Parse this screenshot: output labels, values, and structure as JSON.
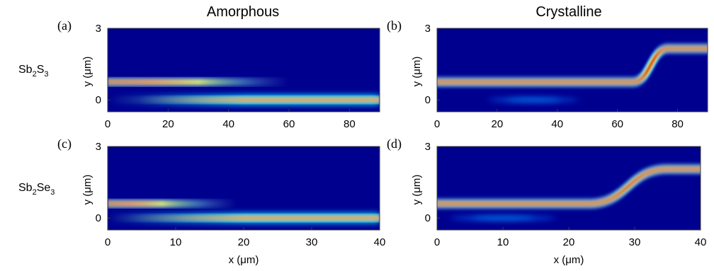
{
  "column_titles": [
    "Amorphous",
    "Crystalline"
  ],
  "row_labels": [
    {
      "base": "Sb",
      "sub1": "2",
      "mid": "S",
      "sub2": "3"
    },
    {
      "base": "Sb",
      "sub1": "2",
      "mid": "Se",
      "sub2": "3"
    }
  ],
  "colors": {
    "background": "#00008f",
    "colormap": "jet"
  },
  "chart_data": [
    {
      "type": "heatmap",
      "panel_label": "(a)",
      "material": "Sb2S3",
      "phase": "Amorphous",
      "xlabel": "",
      "ylabel": "y (μm)",
      "xlim": [
        0,
        90
      ],
      "ylim": [
        -0.5,
        3
      ],
      "xticks": [
        0,
        20,
        40,
        60,
        80
      ],
      "yticks": [
        0,
        3
      ],
      "upper_waveguide": {
        "kind": "fading",
        "y": 0.75,
        "peak_x": 30,
        "fade_end_x": 60
      },
      "lower_waveguide": {
        "kind": "growing",
        "y": 0.0,
        "onset_x": 10,
        "full_x": 45
      }
    },
    {
      "type": "heatmap",
      "panel_label": "(b)",
      "material": "Sb2S3",
      "phase": "Crystalline",
      "xlabel": "",
      "ylabel": "y (μm)",
      "xlim": [
        0,
        90
      ],
      "ylim": [
        -0.5,
        3
      ],
      "xticks": [
        0,
        20,
        40,
        60,
        80
      ],
      "yticks": [
        0,
        3
      ],
      "upper_waveguide": {
        "kind": "s-bend",
        "y_start": 0.75,
        "y_end": 2.15,
        "bend_start_x": 65,
        "bend_end_x": 77
      },
      "lower_waveguide": {
        "kind": "weak",
        "y": 0.0,
        "center_x": 32,
        "span_x": 30
      }
    },
    {
      "type": "heatmap",
      "panel_label": "(c)",
      "material": "Sb2Se3",
      "phase": "Amorphous",
      "xlabel": "x (μm)",
      "ylabel": "y (μm)",
      "xlim": [
        0,
        40
      ],
      "ylim": [
        -0.5,
        3
      ],
      "xticks": [
        0,
        10,
        20,
        30,
        40
      ],
      "yticks": [
        0,
        3
      ],
      "upper_waveguide": {
        "kind": "fading",
        "y": 0.6,
        "peak_x": 8,
        "fade_end_x": 19
      },
      "lower_waveguide": {
        "kind": "growing",
        "y": 0.0,
        "onset_x": 3,
        "full_x": 20
      }
    },
    {
      "type": "heatmap",
      "panel_label": "(d)",
      "material": "Sb2Se3",
      "phase": "Crystalline",
      "xlabel": "x (μm)",
      "ylabel": "y (μm)",
      "xlim": [
        0,
        40
      ],
      "ylim": [
        -0.5,
        3
      ],
      "xticks": [
        0,
        10,
        20,
        30,
        40
      ],
      "yticks": [
        0,
        3
      ],
      "upper_waveguide": {
        "kind": "s-bend",
        "y_start": 0.6,
        "y_end": 2.05,
        "bend_start_x": 23,
        "bend_end_x": 35
      },
      "lower_waveguide": {
        "kind": "weak",
        "y": 0.0,
        "center_x": 10,
        "span_x": 16
      }
    }
  ]
}
